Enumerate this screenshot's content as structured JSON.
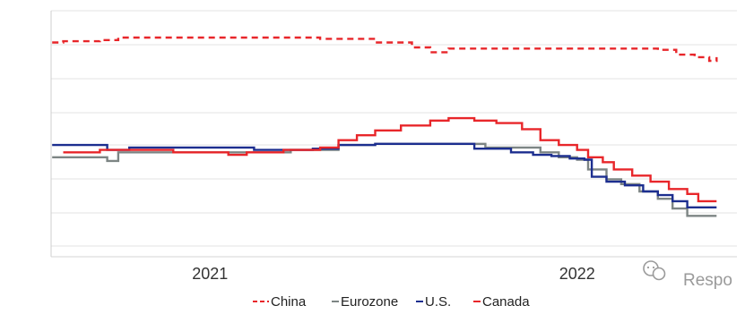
{
  "chart_data": {
    "type": "line",
    "x_ticks": [
      {
        "label": "2021",
        "x": 2021.0
      },
      {
        "label": "2022",
        "x": 2022.0
      }
    ],
    "xlim": [
      2020.55,
      2022.45
    ],
    "ylim": [
      0,
      10
    ],
    "grid": "horizontal",
    "legend_position": "bottom",
    "series": [
      {
        "name": "China",
        "color": "#e8262a",
        "style": "dashed",
        "points": [
          [
            2020.57,
            8.7
          ],
          [
            2020.6,
            8.75
          ],
          [
            2020.7,
            8.8
          ],
          [
            2020.75,
            8.9
          ],
          [
            2020.9,
            8.9
          ],
          [
            2021.1,
            8.9
          ],
          [
            2021.3,
            8.85
          ],
          [
            2021.45,
            8.7
          ],
          [
            2021.55,
            8.5
          ],
          [
            2021.6,
            8.3
          ],
          [
            2021.65,
            8.45
          ],
          [
            2021.8,
            8.45
          ],
          [
            2021.95,
            8.45
          ],
          [
            2022.15,
            8.45
          ],
          [
            2022.22,
            8.4
          ],
          [
            2022.27,
            8.2
          ],
          [
            2022.32,
            8.1
          ],
          [
            2022.36,
            7.95
          ],
          [
            2022.38,
            8.1
          ]
        ]
      },
      {
        "name": "Eurozone",
        "color": "#7d8584",
        "style": "solid",
        "points": [
          [
            2020.57,
            4.0
          ],
          [
            2020.7,
            4.0
          ],
          [
            2020.72,
            3.85
          ],
          [
            2020.75,
            4.2
          ],
          [
            2020.9,
            4.2
          ],
          [
            2021.05,
            4.2
          ],
          [
            2021.15,
            4.2
          ],
          [
            2021.22,
            4.3
          ],
          [
            2021.35,
            4.5
          ],
          [
            2021.45,
            4.55
          ],
          [
            2021.5,
            4.55
          ],
          [
            2021.6,
            4.55
          ],
          [
            2021.68,
            4.55
          ],
          [
            2021.75,
            4.4
          ],
          [
            2021.82,
            4.4
          ],
          [
            2021.9,
            4.2
          ],
          [
            2021.95,
            4.0
          ],
          [
            2022.0,
            3.9
          ],
          [
            2022.03,
            3.5
          ],
          [
            2022.08,
            3.1
          ],
          [
            2022.12,
            2.9
          ],
          [
            2022.17,
            2.6
          ],
          [
            2022.22,
            2.3
          ],
          [
            2022.26,
            1.9
          ],
          [
            2022.3,
            1.6
          ],
          [
            2022.38,
            1.6
          ]
        ]
      },
      {
        "name": "U.S.",
        "color": "#1c2e8f",
        "style": "solid",
        "points": [
          [
            2020.57,
            4.5
          ],
          [
            2020.7,
            4.5
          ],
          [
            2020.72,
            4.3
          ],
          [
            2020.78,
            4.4
          ],
          [
            2020.9,
            4.4
          ],
          [
            2021.05,
            4.4
          ],
          [
            2021.12,
            4.3
          ],
          [
            2021.2,
            4.3
          ],
          [
            2021.28,
            4.35
          ],
          [
            2021.35,
            4.5
          ],
          [
            2021.45,
            4.55
          ],
          [
            2021.55,
            4.55
          ],
          [
            2021.68,
            4.55
          ],
          [
            2021.72,
            4.35
          ],
          [
            2021.78,
            4.35
          ],
          [
            2021.82,
            4.2
          ],
          [
            2021.88,
            4.1
          ],
          [
            2021.93,
            4.05
          ],
          [
            2021.98,
            3.95
          ],
          [
            2022.02,
            3.9
          ],
          [
            2022.04,
            3.2
          ],
          [
            2022.08,
            3.0
          ],
          [
            2022.13,
            2.85
          ],
          [
            2022.18,
            2.6
          ],
          [
            2022.22,
            2.45
          ],
          [
            2022.26,
            2.2
          ],
          [
            2022.3,
            1.95
          ],
          [
            2022.38,
            1.95
          ]
        ]
      },
      {
        "name": "Canada",
        "color": "#e8262a",
        "style": "solid",
        "points": [
          [
            2020.6,
            4.2
          ],
          [
            2020.7,
            4.3
          ],
          [
            2020.8,
            4.3
          ],
          [
            2020.9,
            4.2
          ],
          [
            2021.0,
            4.2
          ],
          [
            2021.05,
            4.1
          ],
          [
            2021.1,
            4.2
          ],
          [
            2021.2,
            4.3
          ],
          [
            2021.3,
            4.4
          ],
          [
            2021.35,
            4.7
          ],
          [
            2021.4,
            4.9
          ],
          [
            2021.45,
            5.1
          ],
          [
            2021.52,
            5.3
          ],
          [
            2021.6,
            5.5
          ],
          [
            2021.65,
            5.6
          ],
          [
            2021.72,
            5.5
          ],
          [
            2021.78,
            5.4
          ],
          [
            2021.85,
            5.15
          ],
          [
            2021.9,
            4.7
          ],
          [
            2021.95,
            4.5
          ],
          [
            2022.0,
            4.3
          ],
          [
            2022.03,
            4.0
          ],
          [
            2022.07,
            3.8
          ],
          [
            2022.1,
            3.5
          ],
          [
            2022.15,
            3.25
          ],
          [
            2022.2,
            3.0
          ],
          [
            2022.25,
            2.7
          ],
          [
            2022.3,
            2.5
          ],
          [
            2022.33,
            2.2
          ],
          [
            2022.38,
            2.2
          ]
        ]
      }
    ]
  },
  "legend": {
    "items": [
      {
        "label": "China",
        "symbol": "- -"
      },
      {
        "label": "Eurozone",
        "symbol": "–"
      },
      {
        "label": "U.S.",
        "symbol": "–"
      },
      {
        "label": "Canada",
        "symbol": "–"
      }
    ]
  },
  "watermark": {
    "text": "Respo",
    "icon": "wechat-icon"
  }
}
